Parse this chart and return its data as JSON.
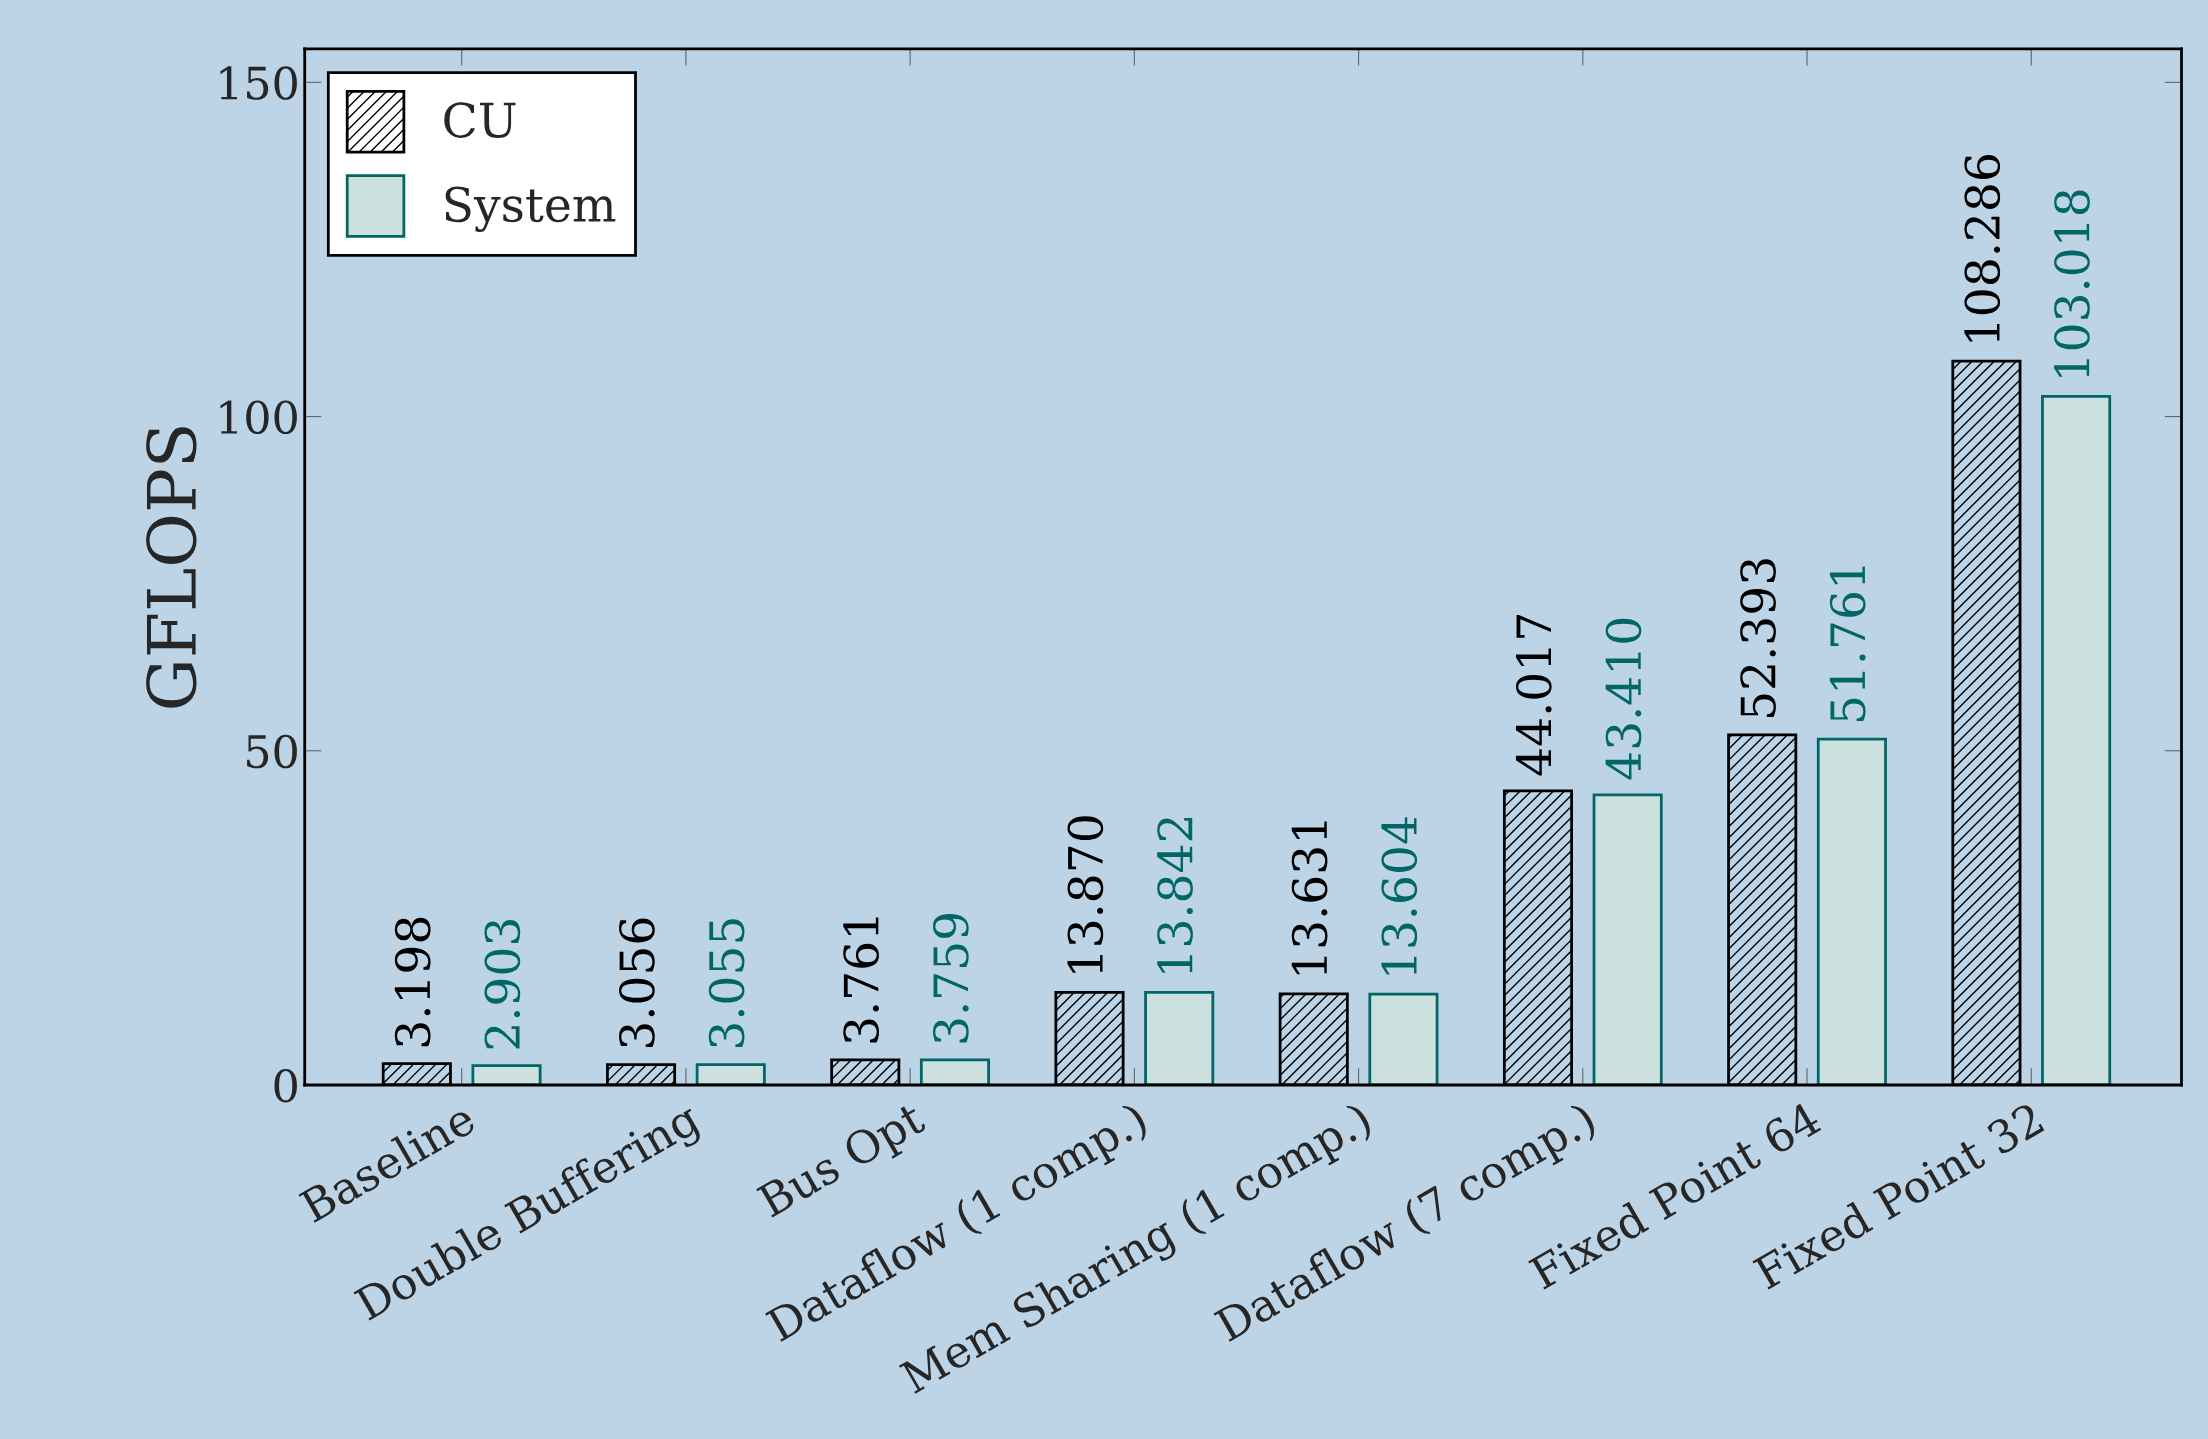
{
  "chart_data": {
    "type": "bar",
    "ylabel": "GFLOPS",
    "categories": [
      "Baseline",
      "Double Buffering",
      "Bus Opt",
      "Dataflow (1 comp.)",
      "Mem Sharing (1 comp.)",
      "Dataflow (7 comp.)",
      "Fixed Point 64",
      "Fixed Point 32"
    ],
    "series": [
      {
        "name": "CU",
        "color": "#000000",
        "values": [
          3.198,
          3.056,
          3.761,
          13.87,
          13.631,
          44.017,
          52.393,
          108.286
        ],
        "value_labels": [
          "3.198",
          "3.056",
          "3.761",
          "13.870",
          "13.631",
          "44.017",
          "52.393",
          "108.286"
        ]
      },
      {
        "name": "System",
        "color": "#006666",
        "values": [
          2.903,
          3.055,
          3.759,
          13.842,
          13.604,
          43.41,
          51.761,
          103.018
        ],
        "value_labels": [
          "2.903",
          "3.055",
          "3.759",
          "13.842",
          "13.604",
          "43.410",
          "51.761",
          "103.018"
        ]
      }
    ],
    "ylim": [
      0,
      155
    ],
    "yticks": [
      0,
      50,
      100,
      150
    ],
    "legend": "top left",
    "grid": false
  }
}
